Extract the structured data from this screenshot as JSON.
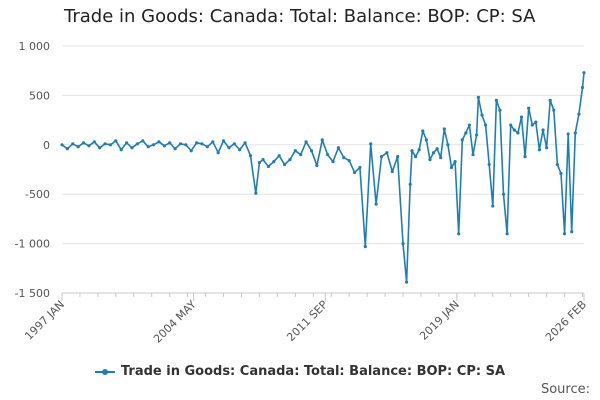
{
  "chart_data": {
    "type": "line",
    "title": "Trade in Goods: Canada: Total: Balance: BOP: CP: SA",
    "xlabel": "",
    "ylabel": "",
    "ylim": [
      -1500,
      1000
    ],
    "xlim": [
      1997.0,
      2026.083
    ],
    "y_ticks": [
      1000,
      500,
      0,
      -500,
      -1000,
      -1500
    ],
    "y_tick_labels": [
      "1 000",
      "500",
      "0",
      "-500",
      "-1 000",
      "-1 500"
    ],
    "x_tick_labels": [
      "1997 JAN",
      "2004 MAY",
      "2011 SEP",
      "2019 JAN",
      "2026 FEB"
    ],
    "x_tick_positions": [
      1997.0,
      2004.333,
      2011.667,
      2019.0,
      2026.083
    ],
    "grid": true,
    "legend_position": "bottom",
    "source_label": "Source:",
    "series": [
      {
        "name": "Trade in Goods: Canada: Total: Balance: BOP: CP: SA",
        "color": "#1f7fb5",
        "x": [
          1997.0,
          1997.3,
          1997.6,
          1997.9,
          1998.2,
          1998.5,
          1998.8,
          1999.1,
          1999.4,
          1999.7,
          2000.0,
          2000.3,
          2000.6,
          2000.9,
          2001.2,
          2001.5,
          2001.8,
          2002.1,
          2002.4,
          2002.7,
          2003.0,
          2003.3,
          2003.6,
          2003.9,
          2004.2,
          2004.5,
          2004.8,
          2005.1,
          2005.4,
          2005.7,
          2006.0,
          2006.3,
          2006.6,
          2006.9,
          2007.2,
          2007.5,
          2007.8,
          2008.0,
          2008.2,
          2008.5,
          2008.8,
          2009.1,
          2009.4,
          2009.7,
          2010.0,
          2010.3,
          2010.6,
          2010.9,
          2011.2,
          2011.5,
          2011.8,
          2012.1,
          2012.4,
          2012.7,
          2013.0,
          2013.3,
          2013.6,
          2013.9,
          2014.2,
          2014.5,
          2014.8,
          2015.1,
          2015.4,
          2015.7,
          2016.0,
          2016.2,
          2016.4,
          2016.5,
          2016.7,
          2016.9,
          2017.1,
          2017.3,
          2017.5,
          2017.7,
          2017.9,
          2018.1,
          2018.3,
          2018.5,
          2018.7,
          2018.9,
          2019.1,
          2019.3,
          2019.5,
          2019.7,
          2019.9,
          2020.1,
          2020.2,
          2020.4,
          2020.6,
          2020.8,
          2021.0,
          2021.2,
          2021.4,
          2021.6,
          2021.8,
          2022.0,
          2022.2,
          2022.4,
          2022.6,
          2022.8,
          2023.0,
          2023.2,
          2023.4,
          2023.6,
          2023.8,
          2024.0,
          2024.2,
          2024.4,
          2024.6,
          2024.8,
          2025.0,
          2025.2,
          2025.4,
          2025.6,
          2025.8,
          2026.0,
          2026.083
        ],
        "values": [
          0,
          -40,
          10,
          -20,
          20,
          -10,
          30,
          -30,
          10,
          0,
          40,
          -50,
          20,
          -30,
          10,
          40,
          -20,
          0,
          30,
          -10,
          20,
          -40,
          10,
          0,
          -60,
          20,
          10,
          -20,
          30,
          -80,
          40,
          -30,
          10,
          -50,
          20,
          -110,
          -490,
          -180,
          -150,
          -220,
          -170,
          -110,
          -200,
          -150,
          -60,
          -100,
          30,
          -60,
          -210,
          50,
          -100,
          -170,
          -30,
          -130,
          -160,
          -280,
          -230,
          -1030,
          10,
          -600,
          -120,
          -80,
          -270,
          -120,
          -1000,
          -1390,
          -400,
          -60,
          -120,
          -50,
          140,
          50,
          -150,
          -80,
          -40,
          -130,
          160,
          0,
          -230,
          -170,
          -900,
          50,
          120,
          200,
          -100,
          100,
          480,
          300,
          200,
          -200,
          -620,
          450,
          350,
          -500,
          -900,
          200,
          150,
          120,
          280,
          -120,
          370,
          200,
          230,
          -50,
          150,
          -30,
          450,
          350,
          -200,
          -290,
          -900,
          110,
          -880,
          120,
          310,
          580,
          730
        ]
      }
    ]
  }
}
